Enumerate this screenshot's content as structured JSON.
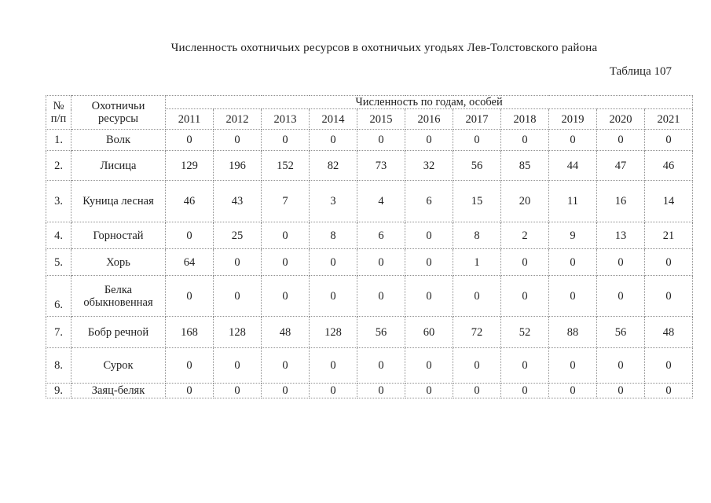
{
  "document": {
    "title": "Численность охотничьих ресурсов в охотничьих угодьях Лев-Толстовского района",
    "table_label": "Таблица 107"
  },
  "table": {
    "headers": {
      "num": "№ п/п",
      "resource": "Охотничьи ресурсы",
      "years_group": "Численность по годам, особей"
    },
    "years": [
      "2011",
      "2012",
      "2013",
      "2014",
      "2015",
      "2016",
      "2017",
      "2018",
      "2019",
      "2020",
      "2021"
    ],
    "rows": [
      {
        "num": "1.",
        "name": "Волк",
        "values": [
          0,
          0,
          0,
          0,
          0,
          0,
          0,
          0,
          0,
          0,
          0
        ]
      },
      {
        "num": "2.",
        "name": "Лисица",
        "values": [
          129,
          196,
          152,
          82,
          73,
          32,
          56,
          85,
          44,
          47,
          46
        ]
      },
      {
        "num": "3.",
        "name": "Куница лесная",
        "values": [
          46,
          43,
          7,
          3,
          4,
          6,
          15,
          20,
          11,
          16,
          14
        ]
      },
      {
        "num": "4.",
        "name": "Горностай",
        "values": [
          0,
          25,
          0,
          8,
          6,
          0,
          8,
          2,
          9,
          13,
          21
        ]
      },
      {
        "num": "5.",
        "name": "Хорь",
        "values": [
          64,
          0,
          0,
          0,
          0,
          0,
          1,
          0,
          0,
          0,
          0
        ]
      },
      {
        "num": "6.",
        "name": "Белка обыкновенная",
        "values": [
          0,
          0,
          0,
          0,
          0,
          0,
          0,
          0,
          0,
          0,
          0
        ]
      },
      {
        "num": "7.",
        "name": "Бобр речной",
        "values": [
          168,
          128,
          48,
          128,
          56,
          60,
          72,
          52,
          88,
          56,
          48
        ]
      },
      {
        "num": "8.",
        "name": "Сурок",
        "values": [
          0,
          0,
          0,
          0,
          0,
          0,
          0,
          0,
          0,
          0,
          0
        ]
      },
      {
        "num": "9.",
        "name": "Заяц-беляк",
        "values": [
          0,
          0,
          0,
          0,
          0,
          0,
          0,
          0,
          0,
          0,
          0
        ]
      }
    ]
  }
}
